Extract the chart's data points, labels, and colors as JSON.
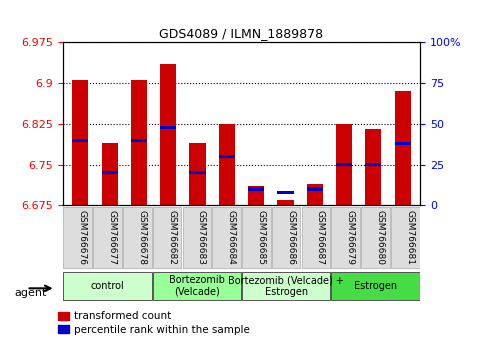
{
  "title": "GDS4089 / ILMN_1889878",
  "samples": [
    "GSM766676",
    "GSM766677",
    "GSM766678",
    "GSM766682",
    "GSM766683",
    "GSM766684",
    "GSM766685",
    "GSM766686",
    "GSM766687",
    "GSM766679",
    "GSM766680",
    "GSM766681"
  ],
  "transformed_count": [
    6.905,
    6.79,
    6.905,
    6.935,
    6.79,
    6.825,
    6.71,
    6.685,
    6.715,
    6.825,
    6.815,
    6.885
  ],
  "percentile_rank": [
    40,
    20,
    40,
    48,
    20,
    30,
    10,
    8,
    10,
    25,
    25,
    38
  ],
  "ymin": 6.675,
  "ymax": 6.975,
  "yticks": [
    6.675,
    6.75,
    6.825,
    6.9,
    6.975
  ],
  "right_yticks": [
    0,
    25,
    50,
    75,
    100
  ],
  "bar_color": "#cc0000",
  "blue_color": "#0000cc",
  "groups": [
    {
      "label": "control",
      "start": 0,
      "end": 3,
      "color": "#ccffcc"
    },
    {
      "label": "Bortezomib\n(Velcade)",
      "start": 3,
      "end": 6,
      "color": "#99ff99"
    },
    {
      "label": "Bortezomib (Velcade) +\nEstrogen",
      "start": 6,
      "end": 9,
      "color": "#ccffcc"
    },
    {
      "label": "Estrogen",
      "start": 9,
      "end": 12,
      "color": "#44dd44"
    }
  ],
  "agent_label": "agent",
  "legend_items": [
    {
      "color": "#cc0000",
      "label": "transformed count"
    },
    {
      "color": "#0000cc",
      "label": "percentile rank within the sample"
    }
  ],
  "bar_width": 0.55,
  "blue_bar_width": 0.55,
  "blue_bar_height": 0.006,
  "xtick_box_color": "#dddddd",
  "figwidth": 4.83,
  "figheight": 3.54,
  "dpi": 100
}
